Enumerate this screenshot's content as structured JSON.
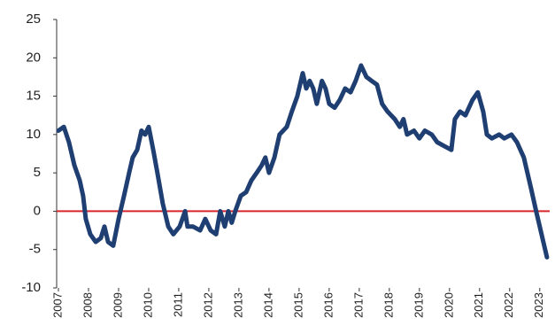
{
  "chart_data": {
    "type": "line",
    "x": [
      2007.0,
      2007.18,
      2007.35,
      2007.53,
      2007.71,
      2007.82,
      2007.91,
      2008.06,
      2008.24,
      2008.41,
      2008.53,
      2008.65,
      2008.82,
      2009.0,
      2009.18,
      2009.35,
      2009.47,
      2009.62,
      2009.76,
      2009.88,
      2010.0,
      2010.15,
      2010.29,
      2010.47,
      2010.65,
      2010.82,
      2011.03,
      2011.21,
      2011.29,
      2011.47,
      2011.71,
      2011.88,
      2012.06,
      2012.24,
      2012.38,
      2012.53,
      2012.65,
      2012.76,
      2012.88,
      2013.06,
      2013.24,
      2013.41,
      2013.59,
      2013.76,
      2013.88,
      2014.0,
      2014.18,
      2014.35,
      2014.59,
      2014.76,
      2014.94,
      2015.12,
      2015.24,
      2015.35,
      2015.47,
      2015.59,
      2015.76,
      2015.88,
      2016.0,
      2016.18,
      2016.35,
      2016.53,
      2016.71,
      2016.88,
      2017.06,
      2017.24,
      2017.41,
      2017.59,
      2017.76,
      2017.94,
      2018.18,
      2018.35,
      2018.47,
      2018.59,
      2018.82,
      2019.0,
      2019.18,
      2019.41,
      2019.59,
      2019.82,
      2020.06,
      2020.18,
      2020.35,
      2020.53,
      2020.76,
      2020.94,
      2021.12,
      2021.24,
      2021.41,
      2021.65,
      2021.82,
      2022.06,
      2022.24,
      2022.47,
      2022.71,
      2022.88,
      2023.06,
      2023.24
    ],
    "series": [
      {
        "color": "#1f3f73",
        "values": [
          10.5,
          11,
          9,
          6,
          4,
          2,
          -1,
          -3,
          -4,
          -3.5,
          -2,
          -4,
          -4.5,
          -1,
          2,
          5,
          7,
          8,
          10.5,
          10,
          11,
          8,
          5,
          1,
          -2,
          -3,
          -2,
          0,
          -2,
          -2,
          -2.5,
          -1,
          -2.5,
          -3,
          0,
          -2,
          0,
          -1.5,
          0,
          2,
          2.5,
          4,
          5,
          6,
          7,
          5,
          7,
          10,
          11,
          13,
          15,
          18,
          16,
          17,
          16,
          14,
          17,
          16,
          14,
          13.5,
          14.5,
          16,
          15.5,
          17,
          19,
          17.5,
          17,
          16.5,
          14,
          13,
          12,
          11,
          12,
          10,
          10.5,
          9.5,
          10.5,
          10,
          9,
          8.5,
          8,
          12,
          13,
          12.5,
          14.5,
          15.5,
          13,
          10,
          9.5,
          10,
          9.5,
          10,
          9,
          7,
          3,
          0,
          -3,
          -6
        ]
      }
    ],
    "xlim": [
      2007,
      2023.33
    ],
    "xticks": [
      2007,
      2008,
      2009,
      2010,
      2011,
      2012,
      2013,
      2014,
      2015,
      2016,
      2017,
      2018,
      2019,
      2020,
      2021,
      2022,
      2023
    ],
    "ylim": [
      -10,
      25
    ],
    "yticks": [
      -10,
      -5,
      0,
      5,
      10,
      15,
      20,
      25
    ],
    "reference_line": {
      "value": 0,
      "color": "#d9262e"
    }
  }
}
